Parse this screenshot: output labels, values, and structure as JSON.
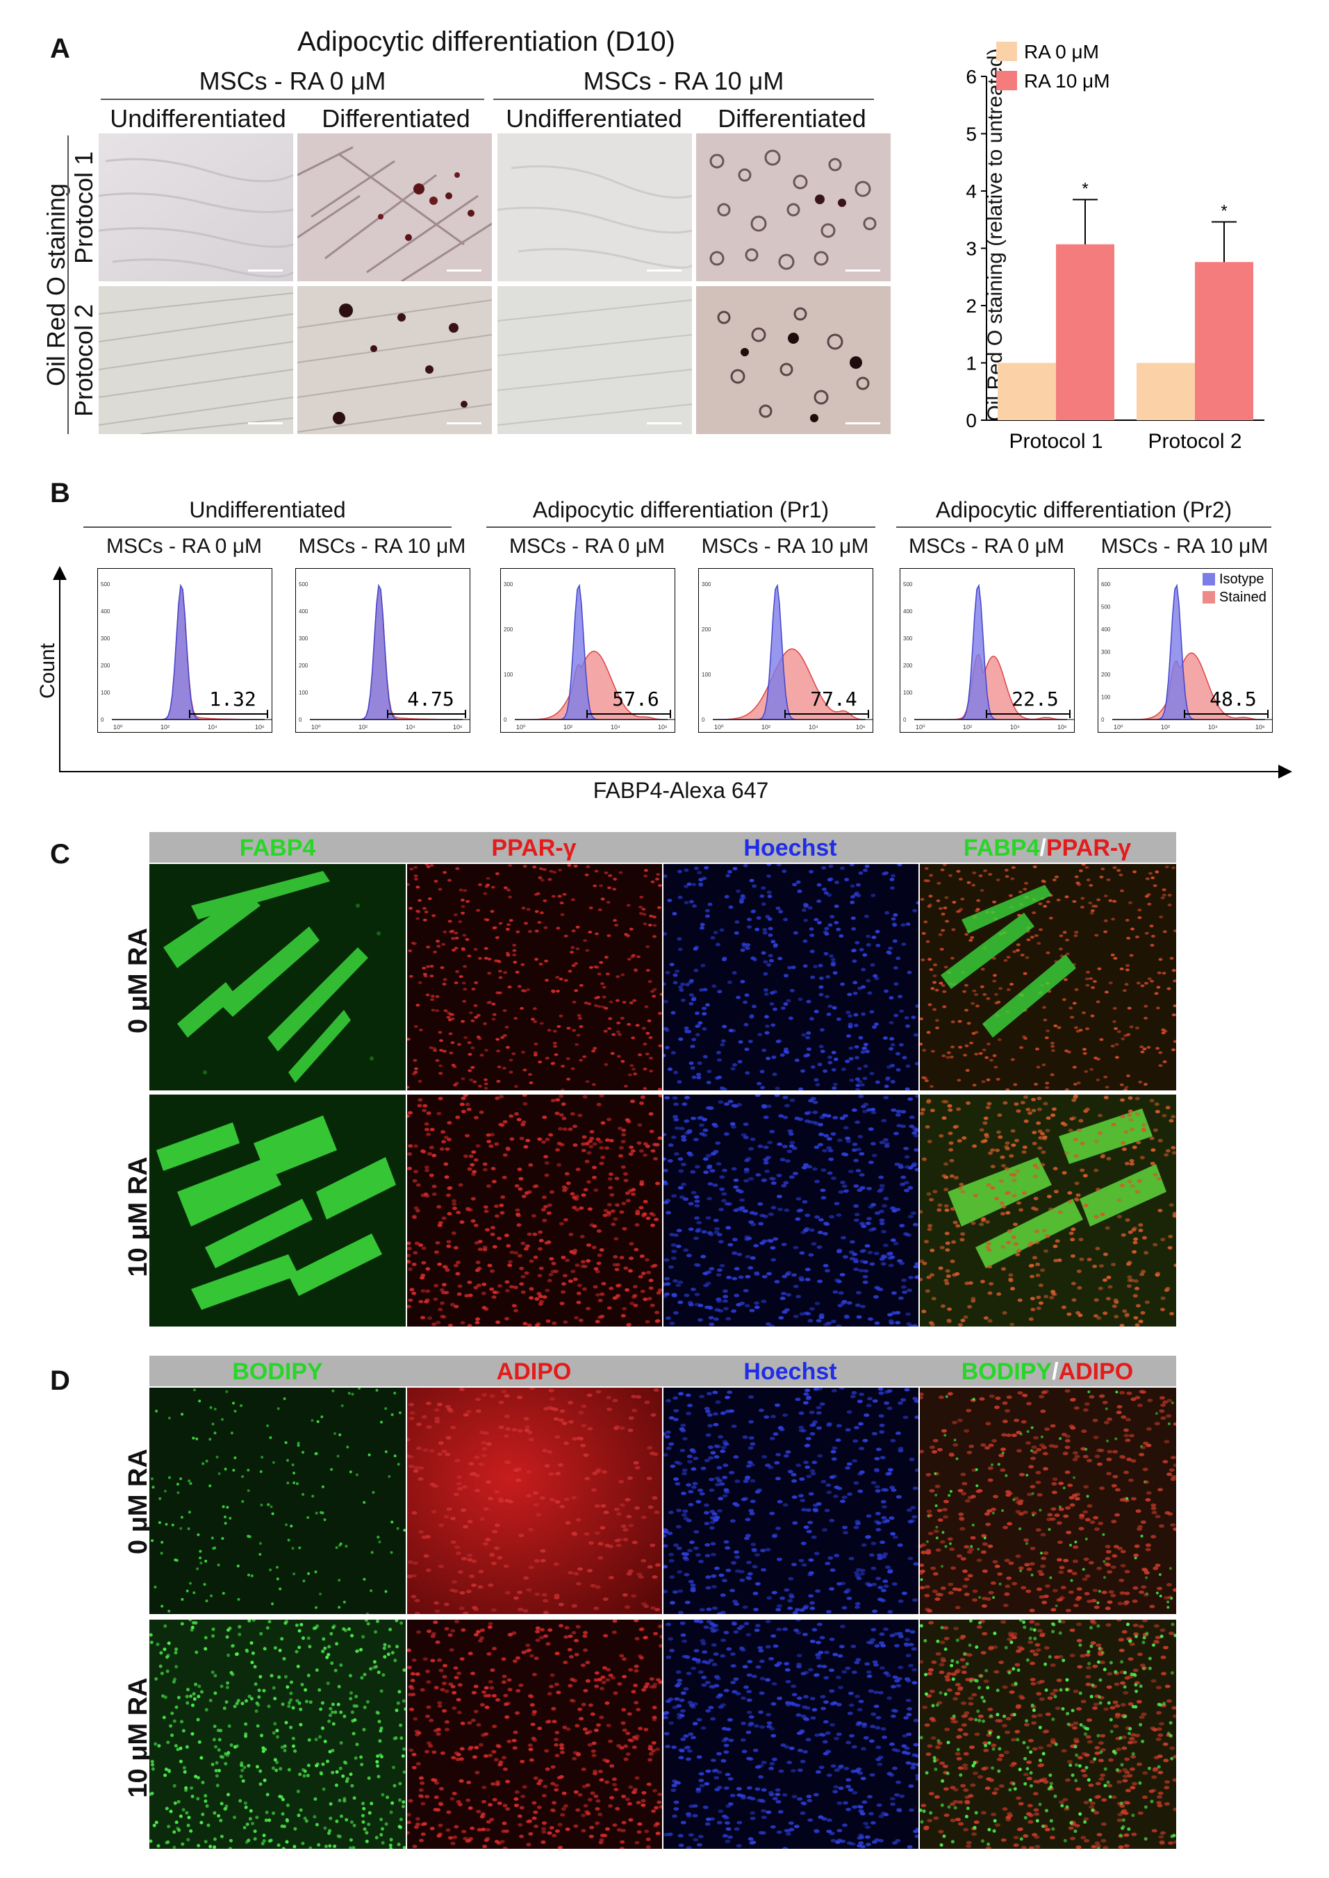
{
  "panel_labels": {
    "a": "A",
    "b": "B",
    "c": "C",
    "d": "D"
  },
  "panelA": {
    "title": "Adipocytic differentiation (D10)",
    "group_left": "MSCs - RA 0 μM",
    "group_right": "MSCs - RA 10 μM",
    "columns": [
      "Undifferentiated",
      "Differentiated",
      "Undifferentiated",
      "Differentiated"
    ],
    "row_axis_label": "Oil Red O staining",
    "rows": [
      "Protocol 1",
      "Protocol 2"
    ]
  },
  "chart_data": [
    {
      "type": "bar",
      "categories": [
        "Protocol 1",
        "Protocol 2"
      ],
      "series": [
        {
          "name": "RA 0 μM",
          "values": [
            1.0,
            1.0
          ],
          "color": "#fbd2a8"
        },
        {
          "name": "RA 10 μM",
          "values": [
            3.07,
            2.76
          ],
          "errors": [
            0.78,
            0.7
          ],
          "color": "#f47c7c"
        }
      ],
      "significance": [
        "*",
        "*"
      ],
      "ylabel": "Oil Red O staining (relative to untreated)",
      "ylim": [
        0,
        6
      ],
      "yticks": [
        "0",
        "1",
        "2",
        "3",
        "4",
        "5",
        "6"
      ],
      "legend_position": "top-left"
    },
    {
      "type": "area",
      "title_groups": [
        "Undifferentiated",
        "Adipocytic differentiation (Pr1)",
        "Adipocytic differentiation (Pr2)"
      ],
      "subtitles": [
        "MSCs - RA 0 μM",
        "MSCs - RA 10 μM",
        "MSCs - RA 0 μM",
        "MSCs - RA 10 μM",
        "MSCs - RA 0 μM",
        "MSCs - RA 10 μM"
      ],
      "percent_positive": [
        "1.32",
        "4.75",
        "57.6",
        "77.4",
        "22.5",
        "48.5"
      ],
      "ymax_ticks": [
        500,
        500,
        300,
        300,
        500,
        600
      ],
      "legend": [
        "Isotype",
        "Stained"
      ],
      "ylabel": "Count",
      "xlabel": "FABP4-Alexa 647",
      "x_scale": "log",
      "x_ticks": [
        "10⁰",
        "10²",
        "10⁴",
        "10⁶"
      ],
      "colors": {
        "isotype": "#7d7de8",
        "stained": "#ef8a8a"
      }
    }
  ],
  "panelC": {
    "headers": [
      {
        "parts": [
          {
            "text": "FABP4",
            "color": "#27d627"
          }
        ]
      },
      {
        "parts": [
          {
            "text": "PPAR-γ",
            "color": "#e31b1b"
          }
        ]
      },
      {
        "parts": [
          {
            "text": "Hoechst",
            "color": "#1f2ee6"
          }
        ]
      },
      {
        "parts": [
          {
            "text": "FABP4",
            "color": "#27d627"
          },
          {
            "text": "/",
            "color": "#ffffff"
          },
          {
            "text": "PPAR-γ",
            "color": "#e31b1b"
          }
        ]
      }
    ],
    "rows": [
      "0 μM RA",
      "10 μM RA"
    ]
  },
  "panelD": {
    "headers": [
      {
        "parts": [
          {
            "text": "BODIPY",
            "color": "#27d627"
          }
        ]
      },
      {
        "parts": [
          {
            "text": "ADIPO",
            "color": "#e31b1b"
          }
        ]
      },
      {
        "parts": [
          {
            "text": "Hoechst",
            "color": "#1f2ee6"
          }
        ]
      },
      {
        "parts": [
          {
            "text": "BODIPY",
            "color": "#27d627"
          },
          {
            "text": "/",
            "color": "#ffffff"
          },
          {
            "text": "ADIPO",
            "color": "#e31b1b"
          }
        ]
      }
    ],
    "rows": [
      "0 μM RA",
      "10 μM RA"
    ]
  }
}
